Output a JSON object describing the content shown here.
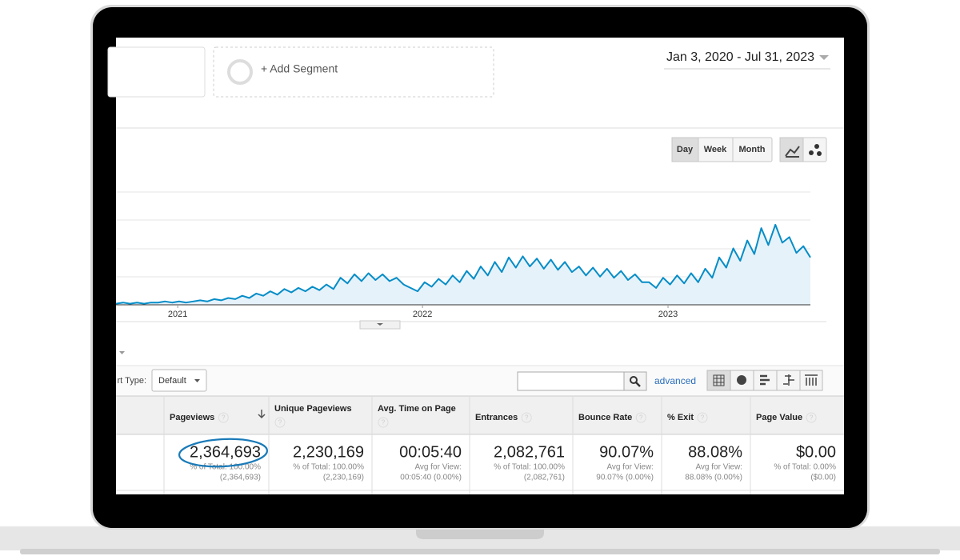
{
  "segment": {
    "add_label": "+ Add Segment"
  },
  "date_range": "Jan 3, 2020 - Jul 31, 2023",
  "view_buttons": [
    "Day",
    "Week",
    "Month"
  ],
  "chart_data": {
    "type": "line",
    "color": "#058dc7",
    "values": [
      1,
      2,
      1,
      2,
      1,
      2,
      2,
      3,
      2,
      3,
      2,
      3,
      4,
      3,
      5,
      4,
      6,
      5,
      8,
      6,
      10,
      8,
      12,
      9,
      14,
      11,
      15,
      12,
      16,
      13,
      18,
      14,
      24,
      19,
      27,
      21,
      28,
      22,
      27,
      21,
      24,
      18,
      15,
      12,
      20,
      16,
      23,
      18,
      26,
      20,
      30,
      23,
      34,
      26,
      38,
      29,
      42,
      33,
      43,
      34,
      41,
      32,
      40,
      31,
      38,
      29,
      34,
      26,
      33,
      25,
      32,
      24,
      30,
      22,
      27,
      20,
      20,
      15,
      24,
      18,
      26,
      19,
      28,
      20,
      32,
      24,
      42,
      33,
      50,
      39,
      57,
      45,
      68,
      53,
      71,
      55,
      60,
      46,
      52,
      42
    ],
    "ylim": [
      0,
      100
    ],
    "xlim": [
      0,
      99
    ],
    "xticks": [
      {
        "value": 8.8,
        "label": "2021"
      },
      {
        "value": 43.7,
        "label": "2022"
      },
      {
        "value": 78.7,
        "label": "2023"
      }
    ]
  },
  "report_type": {
    "label": "rt Type:",
    "value": "Default"
  },
  "advanced": "advanced",
  "help_icon": "?",
  "table": {
    "columns": [
      {
        "header": "Pageviews",
        "value": "2,364,693",
        "sub": [
          "% of Total: 100.00%",
          "(2,364,693)"
        ]
      },
      {
        "header": "Unique Pageviews",
        "value": "2,230,169",
        "sub": [
          "% of Total: 100.00%",
          "(2,230,169)"
        ]
      },
      {
        "header": "Avg. Time on Page",
        "value": "00:05:40",
        "sub": [
          "Avg for View:",
          "00:05:40 (0.00%)"
        ]
      },
      {
        "header": "Entrances",
        "value": "2,082,761",
        "sub": [
          "% of Total: 100.00%",
          "(2,082,761)"
        ]
      },
      {
        "header": "Bounce Rate",
        "value": "90.07%",
        "sub": [
          "Avg for View:",
          "90.07% (0.00%)"
        ]
      },
      {
        "header": "% Exit",
        "value": "88.08%",
        "sub": [
          "Avg for View:",
          "88.08% (0.00%)"
        ]
      },
      {
        "header": "Page Value",
        "value": "$0.00",
        "sub": [
          "% of Total: 0.00%",
          "($0.00)"
        ]
      }
    ]
  }
}
